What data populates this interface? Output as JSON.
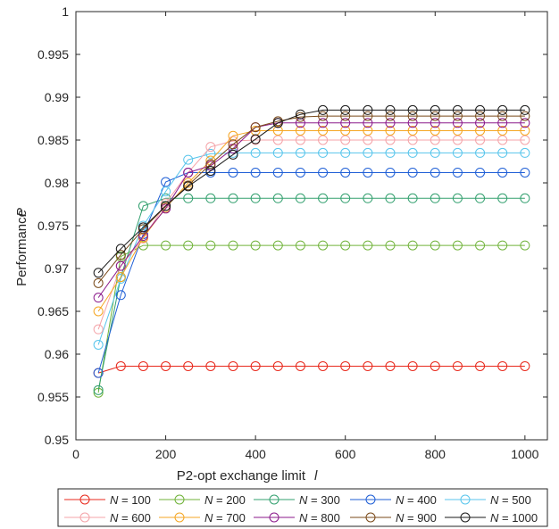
{
  "chart_data": {
    "type": "line",
    "xlabel": "P2-opt exchange limit",
    "xlabel_symbol": "l",
    "ylabel": "Performance",
    "ylabel_symbol": "P",
    "xlim": [
      0,
      1050
    ],
    "ylim": [
      0.95,
      1.0
    ],
    "x_ticks": [
      0,
      200,
      400,
      600,
      800,
      1000
    ],
    "y_ticks": [
      0.95,
      0.955,
      0.96,
      0.965,
      0.97,
      0.975,
      0.98,
      0.985,
      0.99,
      0.995,
      1
    ],
    "x_tick_labels": [
      "0",
      "200",
      "400",
      "600",
      "800",
      "1000"
    ],
    "y_tick_labels": [
      "0.95",
      "0.955",
      "0.96",
      "0.965",
      "0.97",
      "0.975",
      "0.98",
      "0.985",
      "0.99",
      "0.995",
      "1"
    ],
    "grid": false,
    "legend_placement": "bottom",
    "x": [
      50,
      100,
      150,
      200,
      250,
      300,
      350,
      400,
      450,
      500,
      550,
      600,
      650,
      700,
      750,
      800,
      850,
      900,
      950,
      1000
    ],
    "series": [
      {
        "name": "N = 100",
        "name_var": "N",
        "name_value": "= 100",
        "color": "#e8291c",
        "values": [
          0.9578,
          0.9586,
          0.9586,
          0.9586,
          0.9586,
          0.9586,
          0.9586,
          0.9586,
          0.9586,
          0.9586,
          0.9586,
          0.9586,
          0.9586,
          0.9586,
          0.9586,
          0.9586,
          0.9586,
          0.9586,
          0.9586,
          0.9586
        ]
      },
      {
        "name": "N = 200",
        "name_var": "N",
        "name_value": "= 200",
        "color": "#70b33a",
        "values": [
          0.9555,
          0.9714,
          0.9727,
          0.9727,
          0.9727,
          0.9727,
          0.9727,
          0.9727,
          0.9727,
          0.9727,
          0.9727,
          0.9727,
          0.9727,
          0.9727,
          0.9727,
          0.9727,
          0.9727,
          0.9727,
          0.9727,
          0.9727
        ]
      },
      {
        "name": "N = 300",
        "name_var": "N",
        "name_value": "= 300",
        "color": "#33a06f",
        "values": [
          0.9558,
          0.969,
          0.9773,
          0.9782,
          0.9782,
          0.9782,
          0.9782,
          0.9782,
          0.9782,
          0.9782,
          0.9782,
          0.9782,
          0.9782,
          0.9782,
          0.9782,
          0.9782,
          0.9782,
          0.9782,
          0.9782,
          0.9782
        ]
      },
      {
        "name": "N = 400",
        "name_var": "N",
        "name_value": "= 400",
        "color": "#1f5fd6",
        "values": [
          0.9578,
          0.9669,
          0.974,
          0.9801,
          0.9812,
          0.9812,
          0.9812,
          0.9812,
          0.9812,
          0.9812,
          0.9812,
          0.9812,
          0.9812,
          0.9812,
          0.9812,
          0.9812,
          0.9812,
          0.9812,
          0.9812,
          0.9812
        ]
      },
      {
        "name": "N = 500",
        "name_var": "N",
        "name_value": "= 500",
        "color": "#58c5ec",
        "values": [
          0.9611,
          0.9688,
          0.975,
          0.979,
          0.9827,
          0.9834,
          0.9835,
          0.9835,
          0.9835,
          0.9835,
          0.9835,
          0.9835,
          0.9835,
          0.9835,
          0.9835,
          0.9835,
          0.9835,
          0.9835,
          0.9835,
          0.9835
        ]
      },
      {
        "name": "N = 600",
        "name_var": "N",
        "name_value": "= 600",
        "color": "#f4a3a8",
        "values": [
          0.9629,
          0.9703,
          0.9735,
          0.9776,
          0.9812,
          0.9842,
          0.9849,
          0.985,
          0.985,
          0.985,
          0.985,
          0.985,
          0.985,
          0.985,
          0.985,
          0.985,
          0.985,
          0.985,
          0.985,
          0.985
        ]
      },
      {
        "name": "N = 700",
        "name_var": "N",
        "name_value": "= 700",
        "color": "#f5a623",
        "values": [
          0.965,
          0.969,
          0.9736,
          0.9771,
          0.98,
          0.9826,
          0.9855,
          0.9861,
          0.9861,
          0.9861,
          0.9861,
          0.9861,
          0.9861,
          0.9861,
          0.9861,
          0.9861,
          0.9861,
          0.9861,
          0.9861,
          0.9861
        ]
      },
      {
        "name": "N = 800",
        "name_var": "N",
        "name_value": "= 800",
        "color": "#8b1a8b",
        "values": [
          0.9666,
          0.9703,
          0.9738,
          0.977,
          0.9812,
          0.982,
          0.984,
          0.9865,
          0.987,
          0.987,
          0.987,
          0.987,
          0.987,
          0.987,
          0.987,
          0.987,
          0.987,
          0.987,
          0.987,
          0.987
        ]
      },
      {
        "name": "N = 900",
        "name_var": "N",
        "name_value": "= 900",
        "color": "#7a4a1a",
        "values": [
          0.9683,
          0.9716,
          0.9746,
          0.9773,
          0.9797,
          0.9822,
          0.9845,
          0.9865,
          0.9872,
          0.9877,
          0.9878,
          0.9878,
          0.9878,
          0.9878,
          0.9878,
          0.9878,
          0.9878,
          0.9878,
          0.9878,
          0.9878
        ]
      },
      {
        "name": "N = 1000",
        "name_var": "N",
        "name_value": "= 1000",
        "color": "#1a1a1a",
        "values": [
          0.9695,
          0.9723,
          0.9748,
          0.9773,
          0.9796,
          0.9814,
          0.9833,
          0.9851,
          0.987,
          0.988,
          0.9885,
          0.9885,
          0.9885,
          0.9885,
          0.9885,
          0.9885,
          0.9885,
          0.9885,
          0.9885,
          0.9885
        ]
      }
    ]
  }
}
